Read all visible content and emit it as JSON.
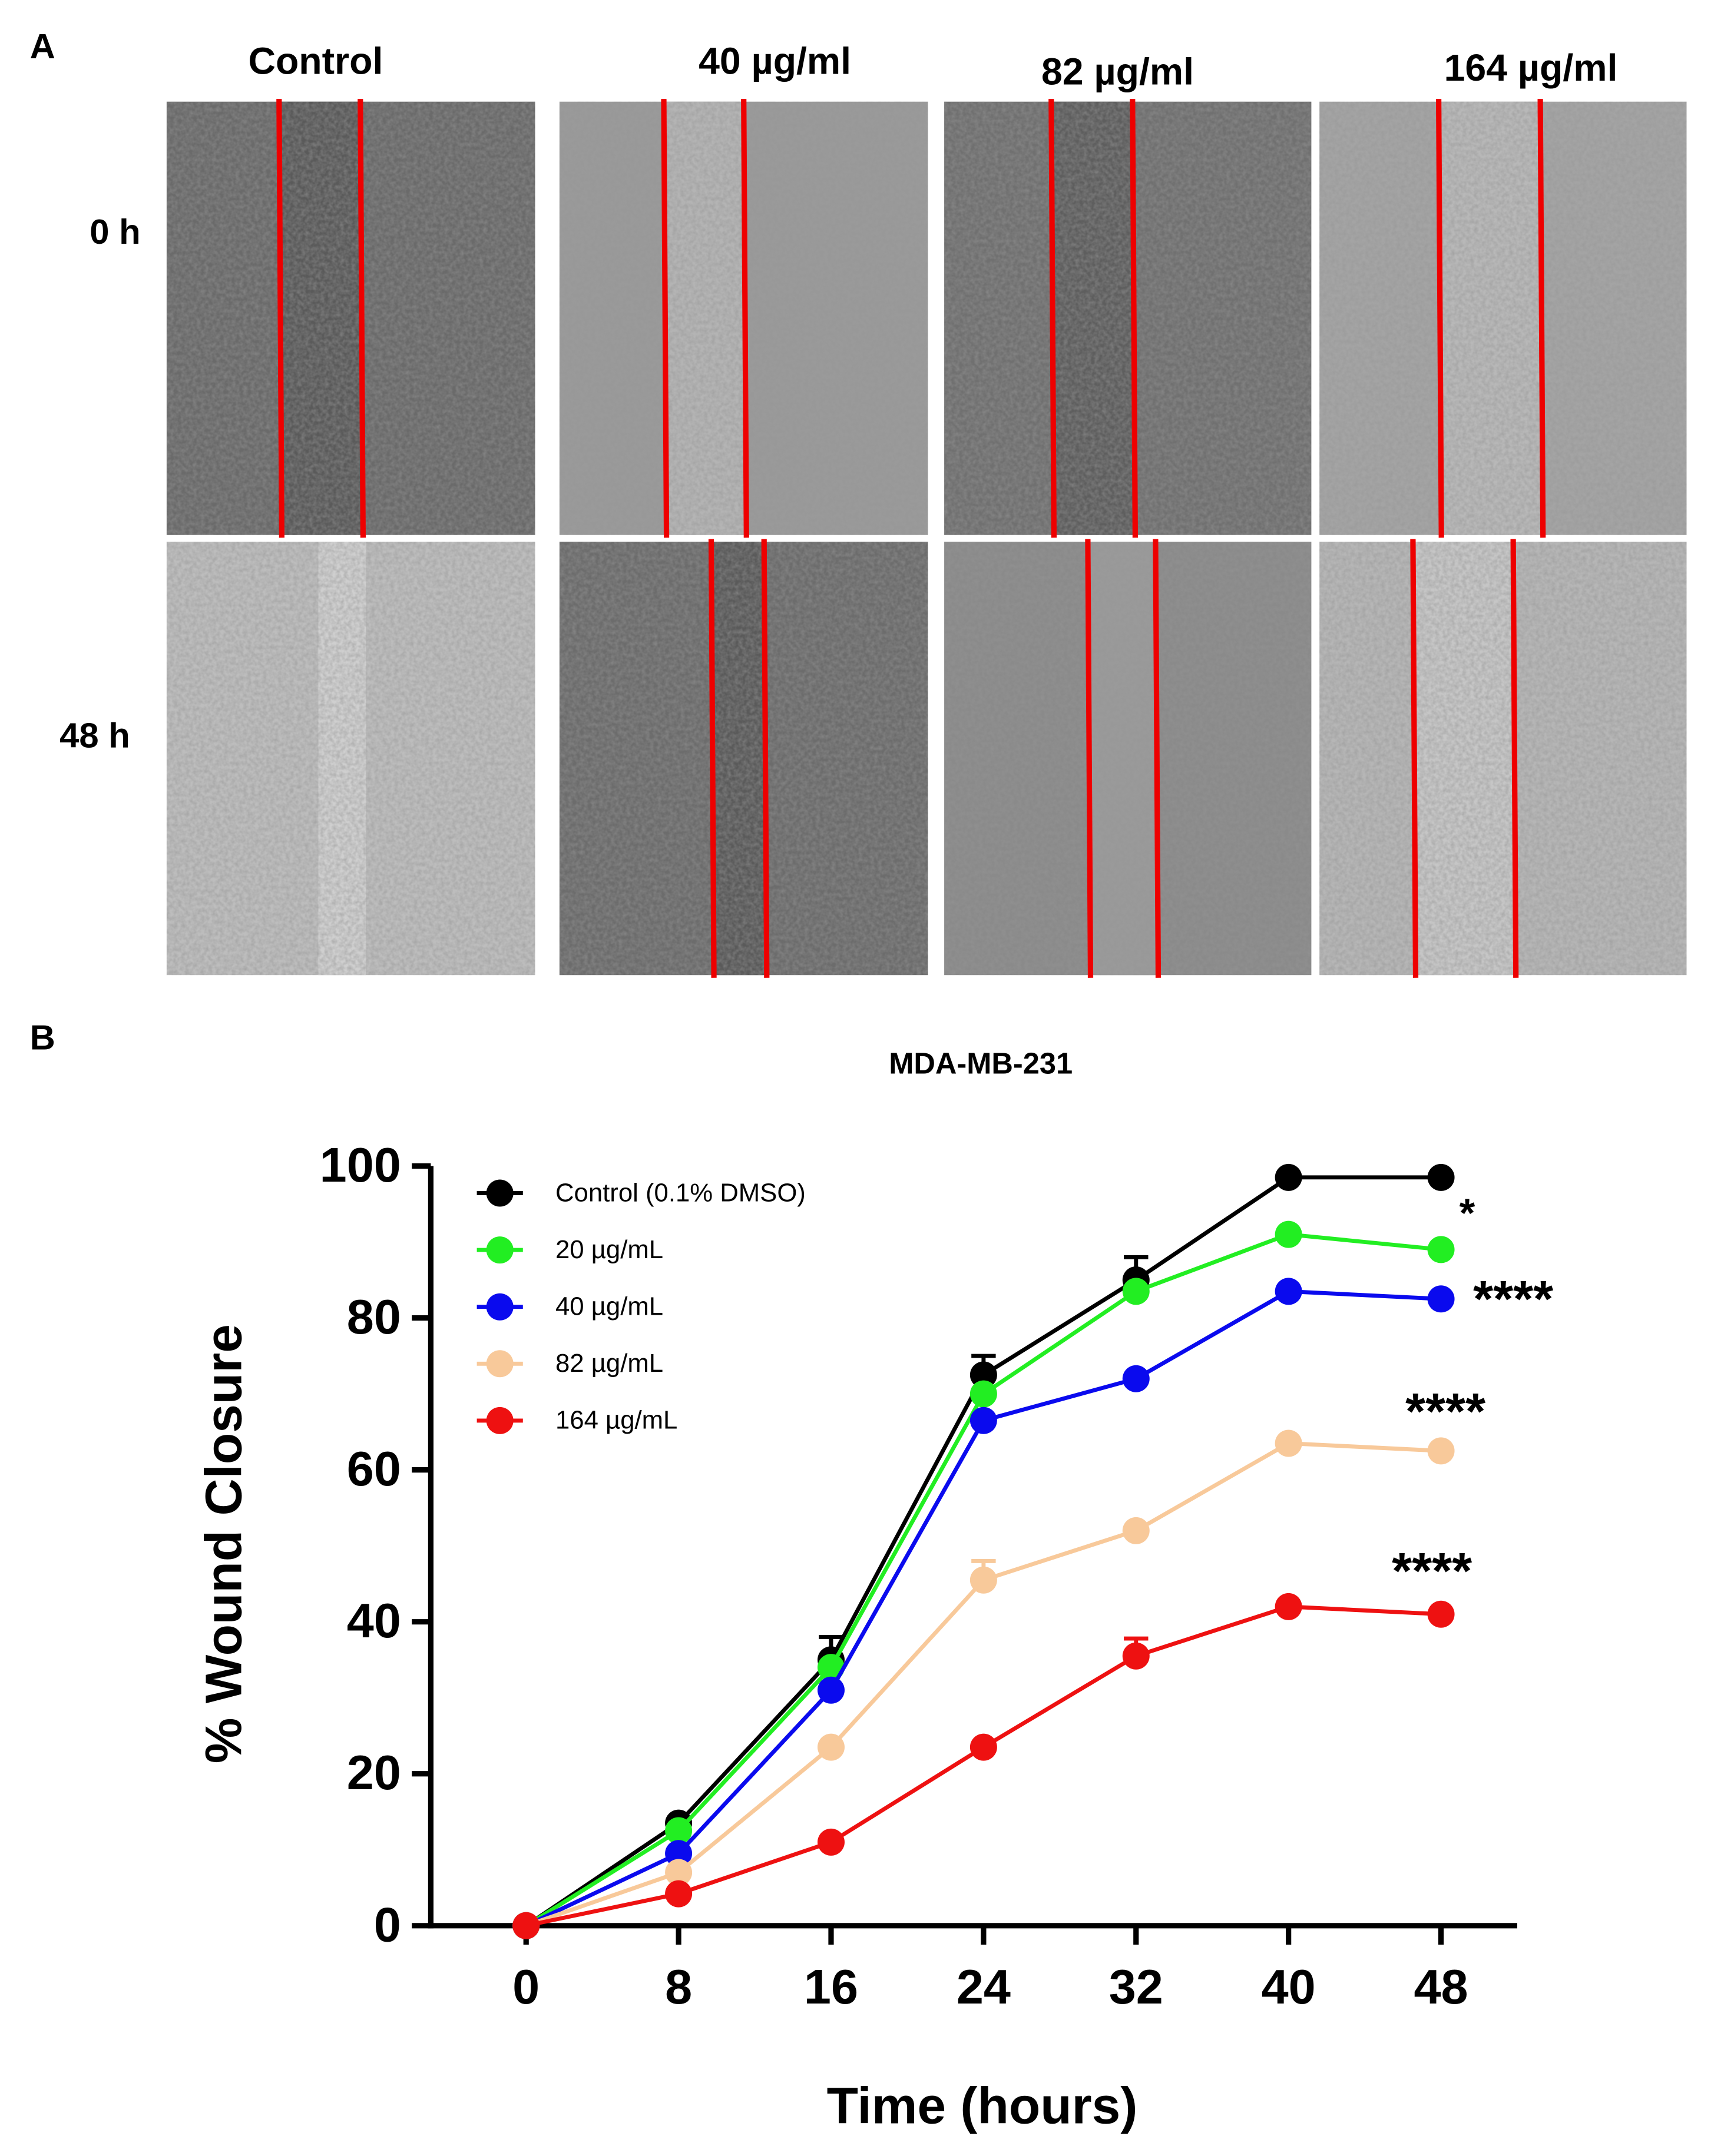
{
  "panel_a": {
    "label": "A",
    "columns": [
      "Control",
      "40 µg/ml",
      "82 µg/ml",
      "164 µg/ml"
    ],
    "rows": [
      "0 h",
      "48 h"
    ]
  },
  "chart_data": {
    "type": "line",
    "panel_label": "B",
    "title": "MDA-MB-231",
    "x_label": "Time (hours)",
    "y_label": "% Wound Closure",
    "x": [
      0,
      8,
      16,
      24,
      32,
      40,
      48
    ],
    "series": [
      {
        "name": "Control (0.1% DMSO)",
        "color": "#000000",
        "values": [
          0,
          13.5,
          35,
          72.5,
          85,
          98.5,
          98.5
        ],
        "errors": [
          null,
          null,
          3,
          2.5,
          3,
          null,
          null
        ]
      },
      {
        "name": "20 µg/mL",
        "color": "#22ee22",
        "values": [
          0,
          12.5,
          34,
          70,
          83.5,
          91,
          89
        ],
        "errors": [
          null,
          null,
          null,
          null,
          null,
          null,
          null
        ]
      },
      {
        "name": "40 µg/mL",
        "color": "#0a0aee",
        "values": [
          0,
          9.5,
          31,
          66.5,
          72,
          83.5,
          82.5
        ],
        "errors": [
          null,
          null,
          null,
          null,
          null,
          null,
          null
        ]
      },
      {
        "name": "82 µg/mL",
        "color": "#f8c99a",
        "values": [
          0,
          7,
          23.5,
          45.5,
          52,
          63.5,
          62.5
        ],
        "errors": [
          null,
          null,
          null,
          2.5,
          null,
          null,
          null
        ]
      },
      {
        "name": "164 µg/mL",
        "color": "#ee1111",
        "values": [
          0,
          4.2,
          11,
          23.5,
          35.5,
          42,
          41
        ],
        "errors": [
          null,
          null,
          null,
          null,
          2.3,
          null,
          null
        ]
      }
    ],
    "annotations": [
      "*",
      "****",
      "****",
      "****"
    ],
    "xlim": [
      -5,
      52
    ],
    "ylim": [
      0,
      100
    ],
    "xticks": [
      0,
      8,
      16,
      24,
      32,
      40,
      48
    ],
    "yticks": [
      0,
      20,
      40,
      60,
      80,
      100
    ],
    "legend": "upper left"
  }
}
